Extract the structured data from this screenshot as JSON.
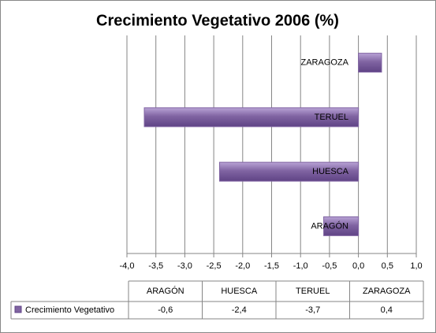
{
  "chart_data": {
    "type": "barh",
    "title": "Crecimiento Vegetativo 2006 (%)",
    "categories": [
      "ARAGÓN",
      "HUESCA",
      "TERUEL",
      "ZARAGOZA"
    ],
    "series": [
      {
        "name": "Crecimiento Vegetativo",
        "color": "#8064a2",
        "values": [
          -0.6,
          -2.4,
          -3.7,
          0.4
        ],
        "value_labels": [
          "-0,6",
          "-2,4",
          "-3,7",
          "0,4"
        ]
      }
    ],
    "xlim": [
      -4,
      1
    ],
    "xticks": [
      {
        "value": -4,
        "label": "-4,0"
      },
      {
        "value": -3.5,
        "label": "-3,5"
      },
      {
        "value": -3,
        "label": "-3,0"
      },
      {
        "value": -2.5,
        "label": "-2,5"
      },
      {
        "value": -2,
        "label": "-2,0"
      },
      {
        "value": -1.5,
        "label": "-1,5"
      },
      {
        "value": -1,
        "label": "-1,0"
      },
      {
        "value": -0.5,
        "label": "-0,5"
      },
      {
        "value": 0,
        "label": "0,0"
      },
      {
        "value": 0.5,
        "label": "0,5"
      },
      {
        "value": 1,
        "label": "1,0"
      }
    ],
    "grid": true
  }
}
